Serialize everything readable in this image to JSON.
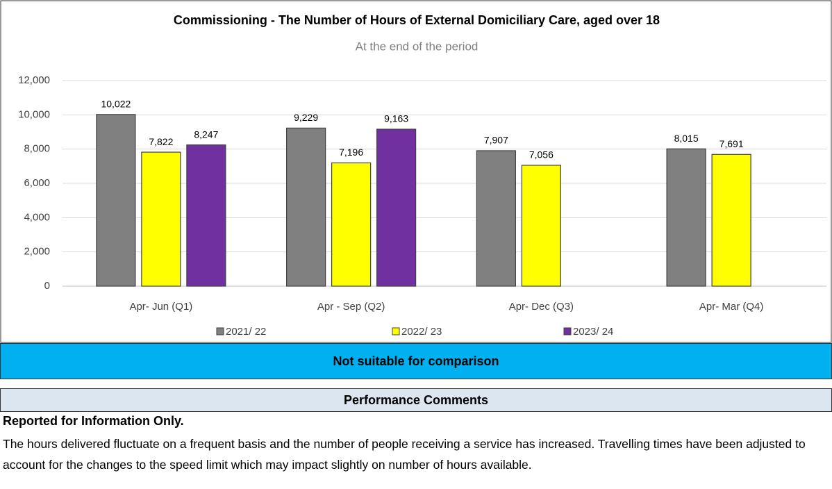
{
  "chart_data": {
    "type": "bar",
    "title": "Commissioning - The Number of Hours of External Domiciliary Care, aged over 18",
    "subtitle": "At the end of the period",
    "categories": [
      "Apr- Jun  (Q1)",
      "Apr - Sep  (Q2)",
      "Apr- Dec  (Q3)",
      "Apr- Mar  (Q4)"
    ],
    "series": [
      {
        "name": "2021/ 22",
        "color": "#808080",
        "values": [
          10022,
          9229,
          7907,
          8015
        ],
        "value_labels": [
          "10,022",
          "9,229",
          "7,907",
          "8,015"
        ]
      },
      {
        "name": "2022/ 23",
        "color": "#ffff00",
        "values": [
          7822,
          7196,
          7056,
          7691
        ],
        "value_labels": [
          "7,822",
          "7,196",
          "7,056",
          "7,691"
        ]
      },
      {
        "name": "2023/ 24",
        "color": "#7030a0",
        "values": [
          8247,
          9163,
          null,
          null
        ],
        "value_labels": [
          "8,247",
          "9,163",
          null,
          null
        ]
      }
    ],
    "ylim": [
      0,
      12000
    ],
    "yticks": [
      0,
      {
        "value": 2000,
        "label": "2,000"
      },
      {
        "value": 4000,
        "label": "4,000"
      },
      {
        "value": 6000,
        "label": "6,000"
      },
      {
        "value": 8000,
        "label": "8,000"
      },
      {
        "value": 10000,
        "label": "10,000"
      },
      {
        "value": 12000,
        "label": "12,000"
      }
    ],
    "grid": true,
    "legend": "bottom"
  },
  "banner": "Not suitable for comparison",
  "comments_header": "Performance Comments",
  "comments": {
    "heading": "Reported for Information Only.",
    "text": "The hours delivered fluctuate on a frequent basis and the number of people receiving a service has increased. Travelling times have been adjusted to account for the changes to the speed limit which may impact slightly on number of hours available."
  }
}
